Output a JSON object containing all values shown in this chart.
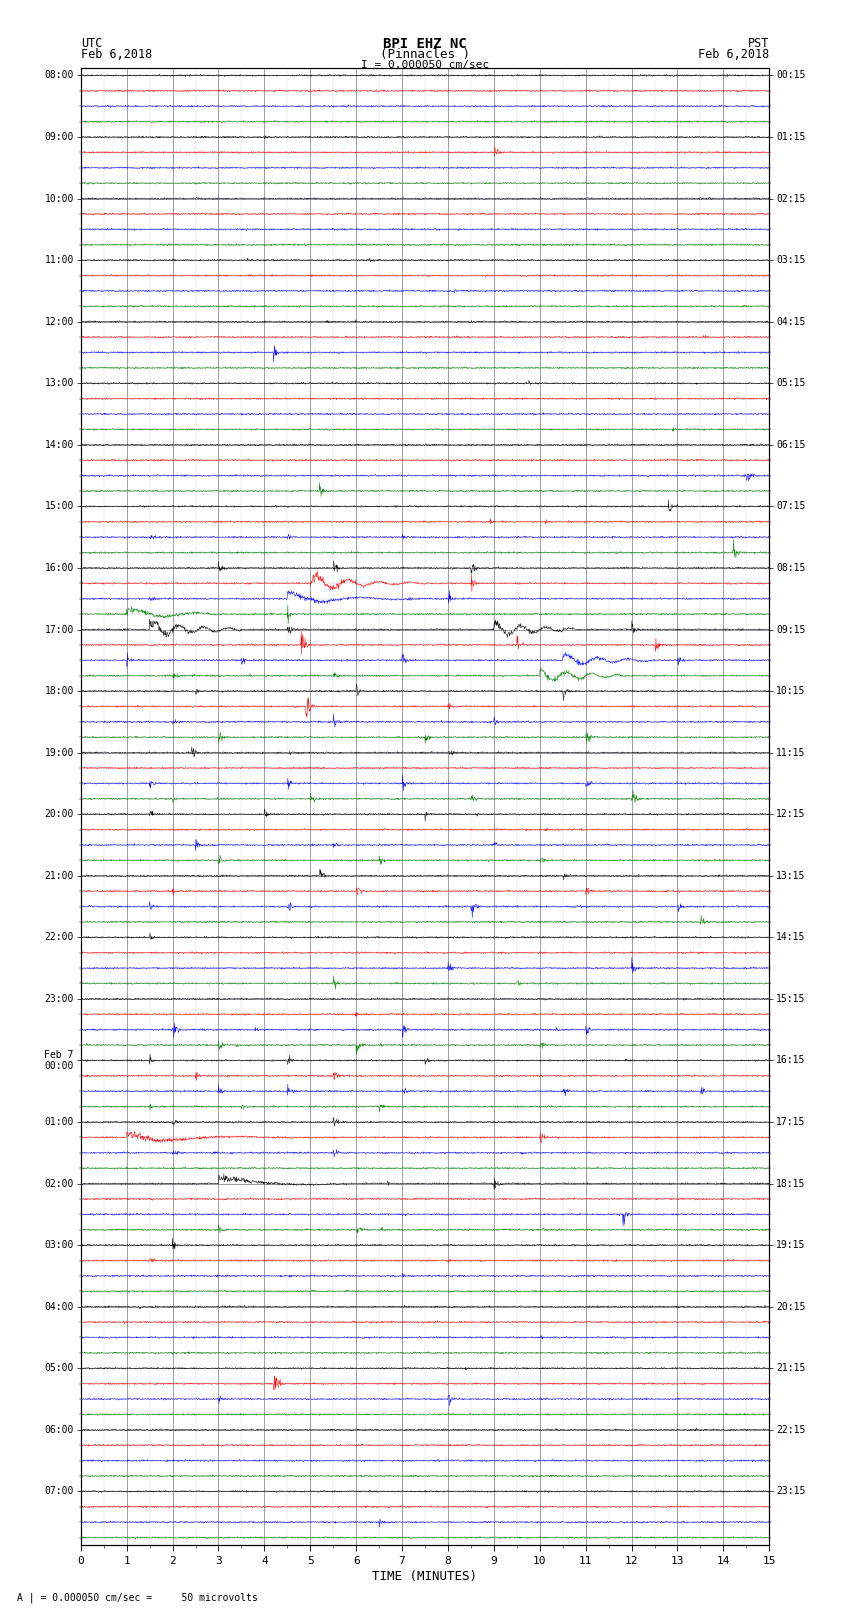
{
  "title_line1": "BPI EHZ NC",
  "title_line2": "(Pinnacles )",
  "scale_label": "I = 0.000050 cm/sec",
  "left_label_line1": "UTC",
  "left_label_line2": "Feb 6,2018",
  "right_label_line1": "PST",
  "right_label_line2": "Feb 6,2018",
  "bottom_label": "TIME (MINUTES)",
  "bottom_note": "A | = 0.000050 cm/sec =     50 microvolts",
  "xlabel_ticks": [
    0,
    1,
    2,
    3,
    4,
    5,
    6,
    7,
    8,
    9,
    10,
    11,
    12,
    13,
    14,
    15
  ],
  "utc_labels": [
    "08:00",
    "09:00",
    "10:00",
    "11:00",
    "12:00",
    "13:00",
    "14:00",
    "15:00",
    "16:00",
    "17:00",
    "18:00",
    "19:00",
    "20:00",
    "21:00",
    "22:00",
    "23:00",
    "Feb 7\n00:00",
    "01:00",
    "02:00",
    "03:00",
    "04:00",
    "05:00",
    "06:00",
    "07:00"
  ],
  "pst_labels": [
    "00:15",
    "01:15",
    "02:15",
    "03:15",
    "04:15",
    "05:15",
    "06:15",
    "07:15",
    "08:15",
    "09:15",
    "10:15",
    "11:15",
    "12:15",
    "13:15",
    "14:15",
    "15:15",
    "16:15",
    "17:15",
    "18:15",
    "19:15",
    "20:15",
    "21:15",
    "22:15",
    "23:15"
  ],
  "bg_color": "#ffffff",
  "grid_color_major": "#7777aa",
  "grid_color_minor": "#aaaacc",
  "trace_colors_cycle": [
    "black",
    "red",
    "blue",
    "green"
  ],
  "num_rows": 96,
  "rows_per_hour": 4,
  "minutes": 15,
  "noise_base": 0.025,
  "fig_width": 8.5,
  "fig_height": 16.13,
  "dpi": 100
}
